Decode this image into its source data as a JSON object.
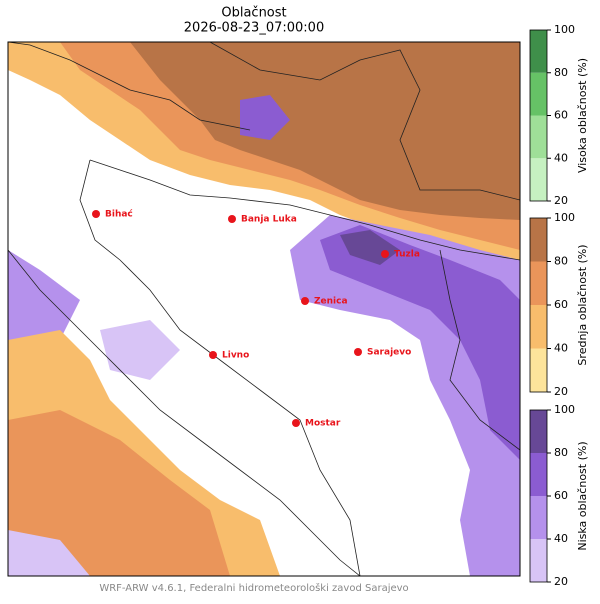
{
  "title": "Oblačnost",
  "subtitle": "2026-08-23_07:00:00",
  "cities": [
    {
      "name": "Bihać"
    },
    {
      "name": "Banja Luka"
    },
    {
      "name": "Tuzla"
    },
    {
      "name": "Zenica"
    },
    {
      "name": "Livno"
    },
    {
      "name": "Sarajevo"
    },
    {
      "name": "Mostar"
    }
  ],
  "colorbars": [
    {
      "label": "Visoka oblačnost (%)",
      "ticks": [
        20,
        40,
        60,
        80,
        100
      ],
      "colors": [
        "#c6f1c1",
        "#9fdf98",
        "#66c266",
        "#3f8f4a"
      ]
    },
    {
      "label": "Srednja oblačnost (%)",
      "ticks": [
        20,
        40,
        60,
        80,
        100
      ],
      "colors": [
        "#fde49b",
        "#f8bd6c",
        "#ea955a",
        "#b87447"
      ]
    },
    {
      "label": "Niska oblačnost (%)",
      "ticks": [
        20,
        40,
        60,
        80,
        100
      ],
      "colors": [
        "#d8c4f6",
        "#b591ec",
        "#8b5cd1",
        "#674896"
      ]
    }
  ],
  "footer": "WRF-ARW v4.6.1, Federalni hidrometeorološki zavod Sarajevo"
}
